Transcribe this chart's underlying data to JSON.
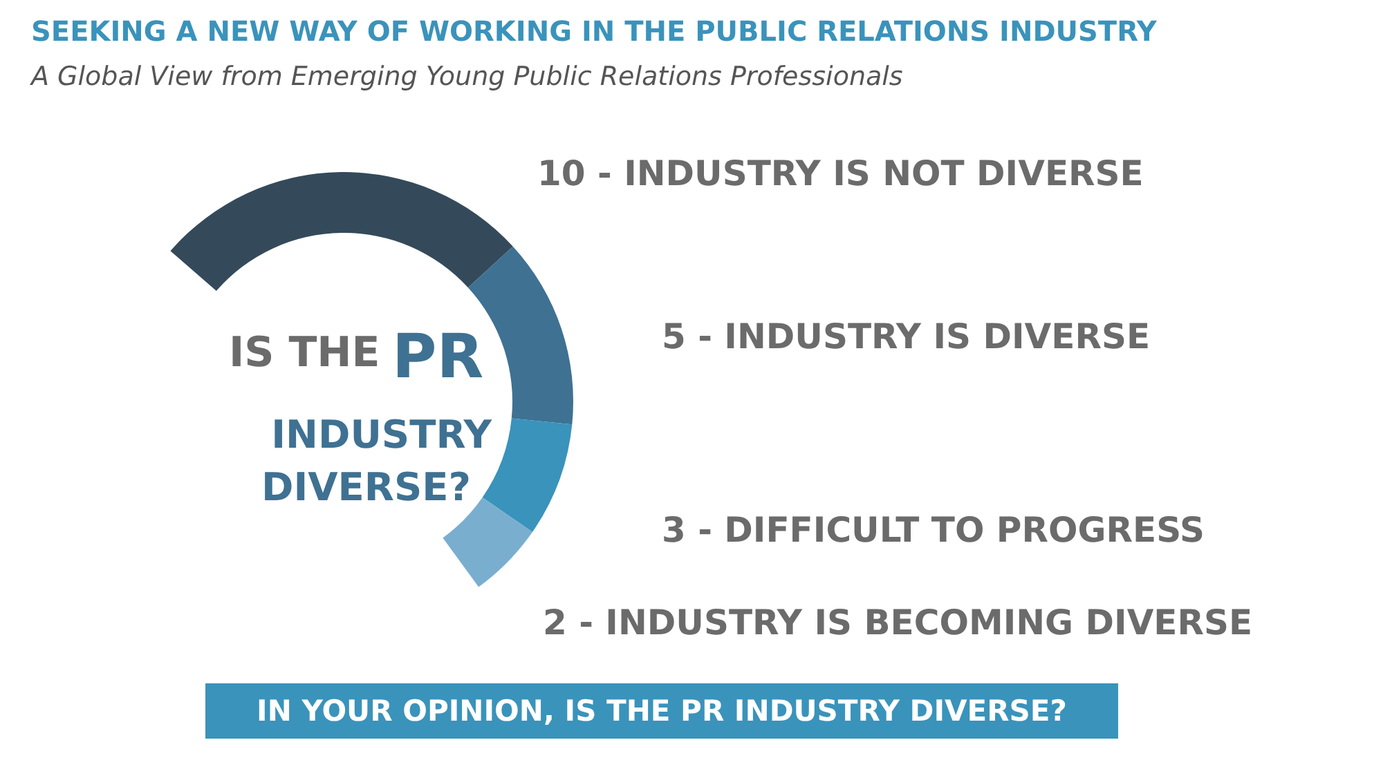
{
  "chart_data": {
    "type": "donut",
    "title": "SEEKING A NEW WAY OF WORKING IN THE PUBLIC RELATIONS INDUSTRY",
    "subtitle": "A Global View from Emerging Young Public Relations Professionals",
    "categories": [
      "10 - INDUSTRY IS NOT DIVERSE",
      "5 - INDUSTRY IS DIVERSE",
      "3 - DIFFICULT TO PROGRESS",
      "2 - INDUSTRY IS BECOMING DIVERSE"
    ],
    "values": [
      10,
      5,
      3,
      2
    ],
    "colors": [
      "#344a5a",
      "#3f7192",
      "#3a93bb",
      "#7aaecf"
    ],
    "annotations": [
      "IS THE PR INDUSTRY DIVERSE?",
      "IN YOUR OPINION, IS THE PR INDUSTRY DIVERSE?"
    ]
  }
}
